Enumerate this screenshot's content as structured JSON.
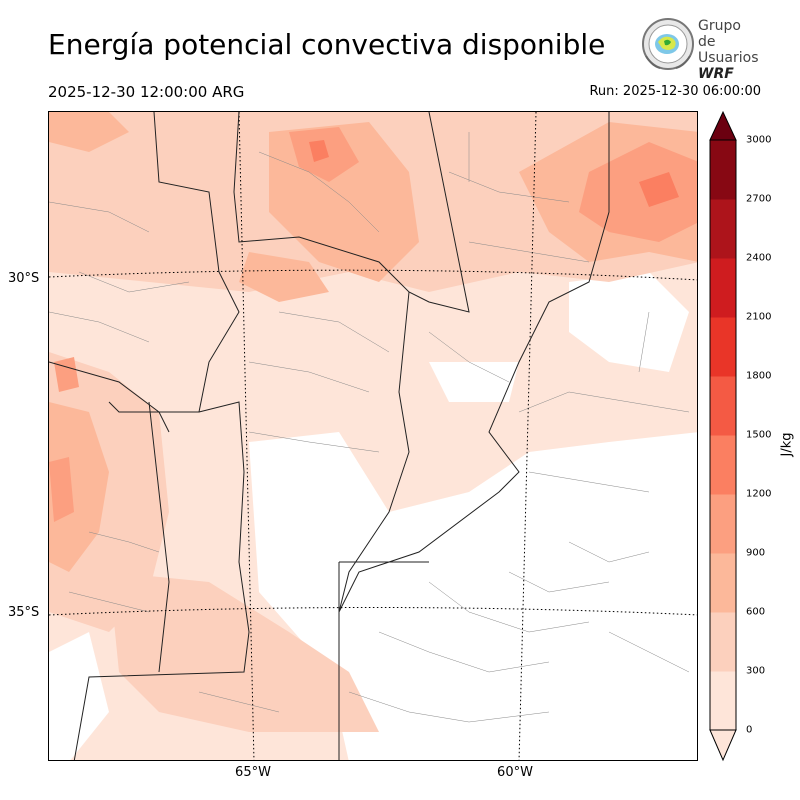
{
  "header": {
    "title": "Energía potencial convectiva disponible",
    "valid_time": "2025-12-30 12:00:00 ARG",
    "run_time": "Run: 2025-12-30 06:00:00"
  },
  "logo": {
    "line1": "Grupo de",
    "line2": "Usuarios",
    "line3": "WRF"
  },
  "map": {
    "lat_labels": [
      "30°S",
      "35°S"
    ],
    "lon_labels": [
      "65°W",
      "60°W"
    ]
  },
  "colorbar": {
    "unit": "J/kg",
    "ticks": [
      "0",
      "300",
      "600",
      "900",
      "1200",
      "1500",
      "1800",
      "2100",
      "2400",
      "2700",
      "3000"
    ],
    "colors": [
      "#fee5d9",
      "#fcd0bd",
      "#fcb89a",
      "#fc9f80",
      "#fb7f61",
      "#f45a44",
      "#e93528",
      "#cf1c1f",
      "#ad141b",
      "#870813"
    ],
    "extend_color": "#6b0010"
  }
}
